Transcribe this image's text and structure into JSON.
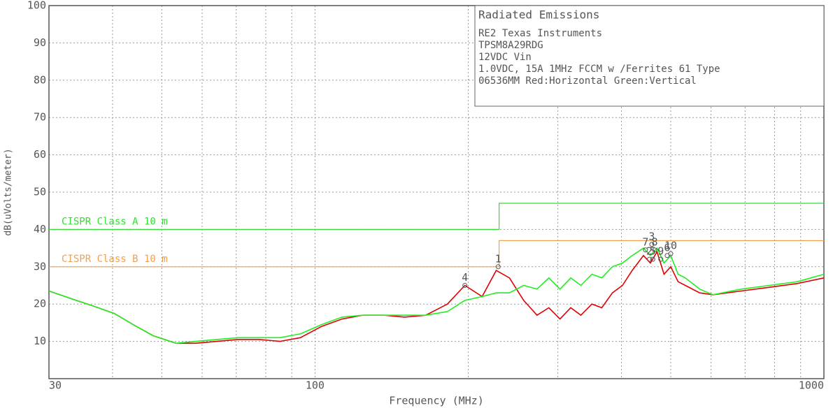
{
  "chart_data": {
    "type": "line",
    "x_label": "Frequency (MHz)",
    "y_label": "dB(uVolts/meter)",
    "xlim": [
      30,
      1000
    ],
    "ylim": [
      0,
      100
    ],
    "x_log": true,
    "xticks": [
      30,
      100,
      1000
    ],
    "x_minor_ticks": [
      40,
      50,
      60,
      70,
      80,
      90,
      200,
      300,
      400,
      500,
      600,
      700,
      800,
      900
    ],
    "yticks": [
      10,
      20,
      30,
      40,
      50,
      60,
      70,
      80,
      90,
      100
    ],
    "grid": true,
    "info": {
      "title": "Radiated Emissions",
      "lines": [
        "RE2 Texas Instruments",
        "TPSM8A29RDG",
        "12VDC Vin",
        "1.0VDC, 15A 1MHz FCCM w /Ferrites 61 Type",
        "06536MM Red:Horizontal Green:Vertical"
      ]
    },
    "limits": [
      {
        "name": "CISPR Class A 10 m",
        "color": "#33dd33",
        "x": [
          30,
          230,
          230,
          1000
        ],
        "values": [
          40,
          40,
          47,
          47
        ]
      },
      {
        "name": "CISPR Class B 10 m",
        "color": "#f0a050",
        "x": [
          30,
          230,
          230,
          1000
        ],
        "values": [
          30,
          30,
          37,
          37
        ]
      }
    ],
    "x": [
      30,
      33.1,
      36.6,
      40.3,
      43.9,
      48.1,
      53.3,
      58.4,
      64.2,
      70.6,
      77.6,
      85.3,
      93.6,
      103,
      113,
      124,
      137,
      150,
      165,
      182,
      197,
      213,
      227,
      241,
      257,
      273,
      288,
      303,
      318,
      333,
      350,
      366,
      384,
      402,
      420,
      442,
      456,
      470,
      485,
      500,
      517,
      534,
      570,
      605,
      688,
      782,
      887,
      1000
    ],
    "series": [
      {
        "color": "#e00000",
        "values": [
          23.5,
          21.5,
          19.5,
          17.5,
          14.5,
          11.5,
          9.5,
          9.5,
          10,
          10.5,
          10.5,
          10,
          11,
          14,
          16,
          17,
          17,
          16.5,
          17,
          20,
          25,
          22,
          29,
          27,
          21,
          17,
          19,
          16,
          19,
          17,
          20,
          19,
          23,
          25,
          29,
          33,
          31,
          34,
          28,
          30,
          26,
          25,
          23,
          22.5,
          23.5,
          24.5,
          25.5,
          27
        ]
      },
      {
        "color": "#22ee22",
        "values": [
          23.5,
          21.5,
          19.5,
          17.5,
          14.5,
          11.5,
          9.5,
          10,
          10.5,
          11,
          11,
          11,
          12,
          14.5,
          16.5,
          17,
          17,
          17,
          17,
          18,
          21,
          22,
          23,
          23,
          25,
          24,
          27,
          24,
          27,
          25,
          28,
          27,
          30,
          31,
          33,
          35,
          33,
          35,
          31,
          33,
          28,
          27,
          24,
          22.5,
          24,
          25,
          26,
          28
        ]
      }
    ],
    "markers": [
      {
        "label": "1",
        "x": 229,
        "y": 30
      },
      {
        "label": "4",
        "x": 197,
        "y": 25
      },
      {
        "label": "7",
        "x": 446,
        "y": 34.5
      },
      {
        "label": "3",
        "x": 459,
        "y": 36
      },
      {
        "label": "8",
        "x": 465,
        "y": 34.5
      },
      {
        "label": "2",
        "x": 454,
        "y": 32
      },
      {
        "label": "5",
        "x": 461,
        "y": 32
      },
      {
        "label": "9",
        "x": 478,
        "y": 32
      },
      {
        "label": "6",
        "x": 492,
        "y": 33
      },
      {
        "label": "10",
        "x": 500,
        "y": 33.5
      }
    ]
  }
}
